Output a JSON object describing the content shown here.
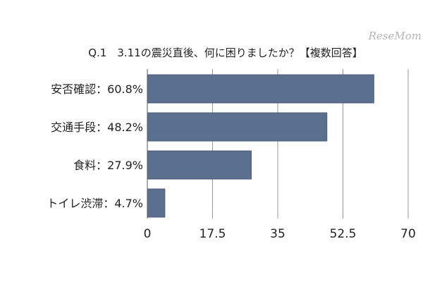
{
  "watermark": "ReseMom",
  "colors": {
    "bar": "#5b6f8e",
    "bar_stroke": "#4c5e79",
    "gridline": "#9a9a9a",
    "axis": "#555555",
    "text": "#222222",
    "watermark": "#b5b5b5"
  },
  "chart_data": {
    "type": "bar",
    "orientation": "horizontal",
    "title": "Q.1　3.11の震災直後、何に困りましたか？【複数回答】",
    "categories": [
      "安否確認：60.8%",
      "交通手段：48.2%",
      "食料：27.9%",
      "トイレ渋滞：4.7%"
    ],
    "values": [
      60.8,
      48.2,
      27.9,
      4.7
    ],
    "xlim": [
      0,
      70
    ],
    "xticks": [
      "0",
      "17.5",
      "35",
      "52.5",
      "70"
    ],
    "grid": true,
    "legend": "none"
  }
}
